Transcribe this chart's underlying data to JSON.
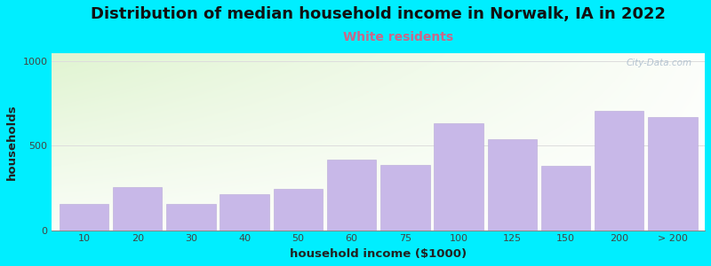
{
  "categories": [
    "10",
    "20",
    "30",
    "40",
    "50",
    "60",
    "75",
    "100",
    "125",
    "150",
    "200",
    "> 200"
  ],
  "values": [
    155,
    255,
    155,
    215,
    245,
    420,
    385,
    635,
    540,
    380,
    710,
    670
  ],
  "bar_color": "#c8b8e8",
  "bar_edge_color": "#b8a8d8",
  "title": "Distribution of median household income in Norwalk, IA in 2022",
  "subtitle": "White residents",
  "subtitle_color": "#cc6688",
  "xlabel": "household income ($1000)",
  "ylabel": "households",
  "ylim": [
    0,
    1050
  ],
  "yticks": [
    0,
    500,
    1000
  ],
  "background_outer": "#00eeff",
  "title_fontsize": 13,
  "subtitle_fontsize": 10,
  "label_fontsize": 9.5,
  "tick_fontsize": 8,
  "watermark_text": "City-Data.com",
  "watermark_color": "#aabbcc",
  "grid_color": "#dddddd"
}
